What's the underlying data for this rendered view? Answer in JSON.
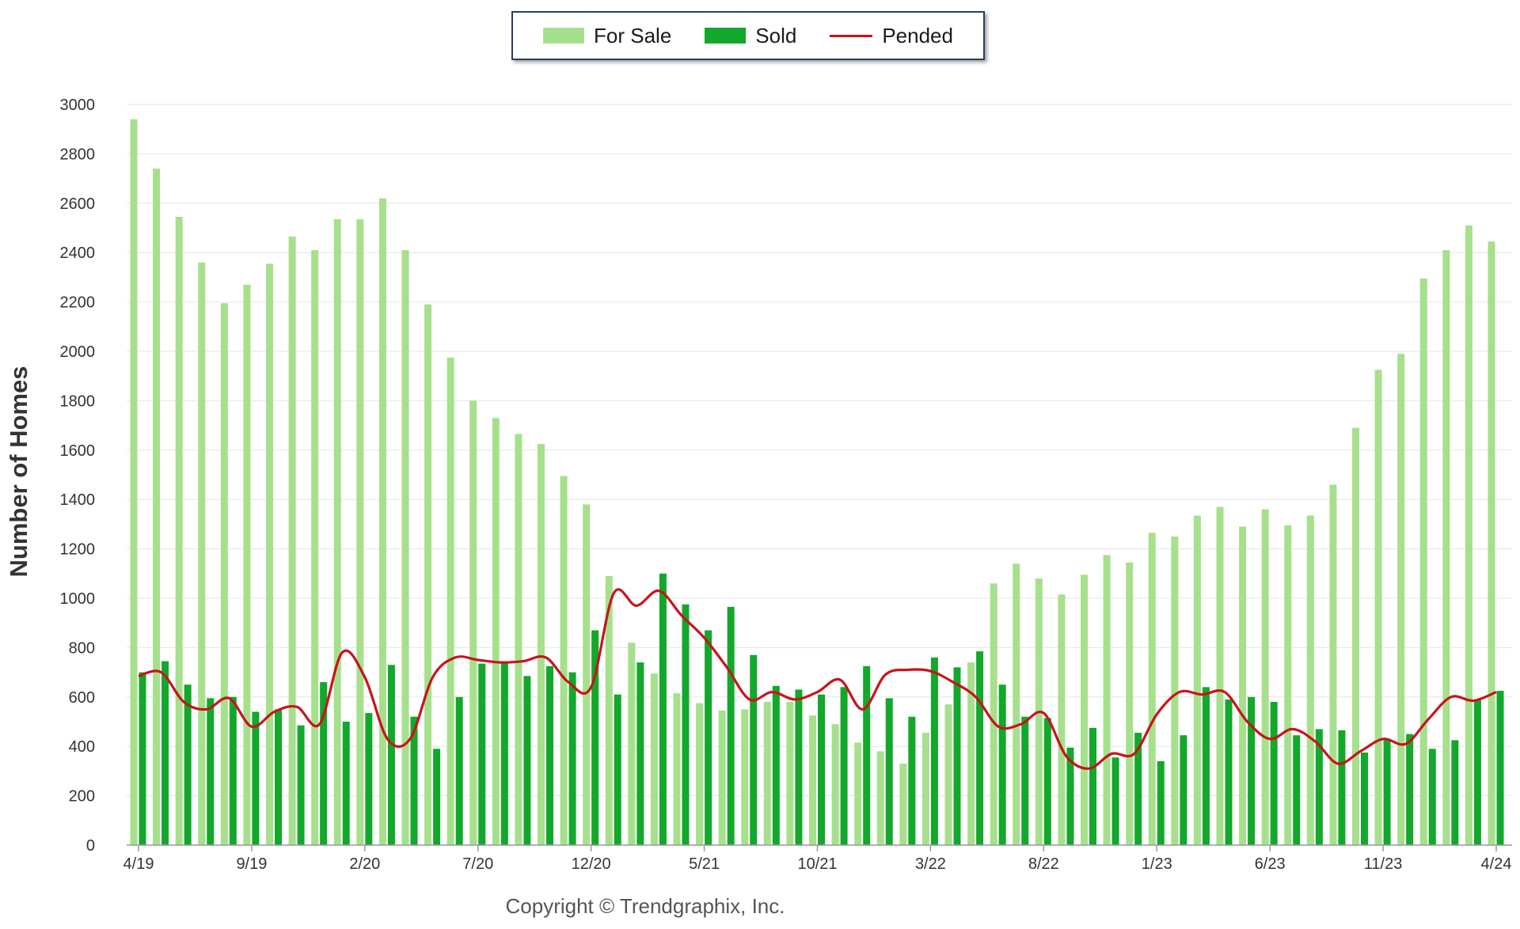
{
  "chart_data": {
    "type": "bar",
    "title": "",
    "ylabel": "Number of Homes",
    "xlabel": "",
    "ylim": [
      0,
      3000
    ],
    "yticks": [
      0,
      200,
      400,
      600,
      800,
      1000,
      1200,
      1400,
      1600,
      1800,
      2000,
      2200,
      2400,
      2600,
      2800,
      3000
    ],
    "categories": [
      "4/19",
      "5/19",
      "6/19",
      "7/19",
      "8/19",
      "9/19",
      "10/19",
      "11/19",
      "12/19",
      "1/20",
      "2/20",
      "3/20",
      "4/20",
      "5/20",
      "6/20",
      "7/20",
      "8/20",
      "9/20",
      "10/20",
      "11/20",
      "12/20",
      "1/21",
      "2/21",
      "3/21",
      "4/21",
      "5/21",
      "6/21",
      "7/21",
      "8/21",
      "9/21",
      "10/21",
      "11/21",
      "12/21",
      "1/22",
      "2/22",
      "3/22",
      "4/22",
      "5/22",
      "6/22",
      "7/22",
      "8/22",
      "9/22",
      "10/22",
      "11/22",
      "12/22",
      "1/23",
      "2/23",
      "3/23",
      "4/23",
      "5/23",
      "6/23",
      "7/23",
      "8/23",
      "9/23",
      "10/23",
      "11/23",
      "12/23",
      "1/24",
      "2/24",
      "3/24",
      "4/24"
    ],
    "x_tick_labels": [
      "4/19",
      "9/19",
      "2/20",
      "7/20",
      "12/20",
      "5/21",
      "10/21",
      "3/22",
      "8/22",
      "1/23",
      "6/23",
      "11/23",
      "4/24"
    ],
    "grid": true,
    "legend_position": "top",
    "series": [
      {
        "name": "For Sale",
        "kind": "bar",
        "color": "#a6e08c",
        "values": [
          2940,
          2740,
          2545,
          2360,
          2195,
          2270,
          2355,
          2465,
          2410,
          2535,
          2535,
          2620,
          2410,
          2190,
          1975,
          1800,
          1730,
          1665,
          1625,
          1495,
          1380,
          1090,
          820,
          695,
          615,
          575,
          545,
          550,
          580,
          580,
          525,
          490,
          415,
          380,
          330,
          455,
          570,
          740,
          1060,
          1140,
          1080,
          1015,
          1095,
          1175,
          1145,
          1265,
          1250,
          1335,
          1370,
          1290,
          1360,
          1295,
          1335,
          1460,
          1690,
          1925,
          1990,
          2295,
          2410,
          2510,
          2445
        ]
      },
      {
        "name": "Sold",
        "kind": "bar",
        "color": "#12a82b",
        "values": [
          700,
          745,
          650,
          595,
          600,
          540,
          550,
          485,
          660,
          500,
          535,
          730,
          520,
          390,
          600,
          735,
          745,
          685,
          725,
          700,
          870,
          610,
          740,
          1100,
          975,
          870,
          965,
          770,
          645,
          630,
          610,
          640,
          725,
          595,
          520,
          760,
          720,
          785,
          650,
          520,
          515,
          395,
          475,
          355,
          455,
          340,
          445,
          640,
          590,
          600,
          580,
          445,
          470,
          465,
          375,
          430,
          450,
          390,
          425,
          590,
          625
        ]
      },
      {
        "name": "Pended",
        "kind": "line",
        "color": "#c9131b",
        "values": [
          685,
          700,
          580,
          550,
          595,
          480,
          540,
          560,
          490,
          780,
          680,
          430,
          430,
          680,
          760,
          750,
          740,
          745,
          760,
          660,
          640,
          1020,
          970,
          1030,
          930,
          840,
          720,
          590,
          620,
          590,
          620,
          670,
          550,
          690,
          710,
          705,
          660,
          600,
          480,
          490,
          535,
          360,
          310,
          370,
          370,
          530,
          620,
          610,
          620,
          500,
          430,
          470,
          420,
          330,
          380,
          430,
          410,
          510,
          600,
          585,
          620
        ]
      }
    ],
    "annotation": "Copyright © Trendgraphix, Inc."
  }
}
